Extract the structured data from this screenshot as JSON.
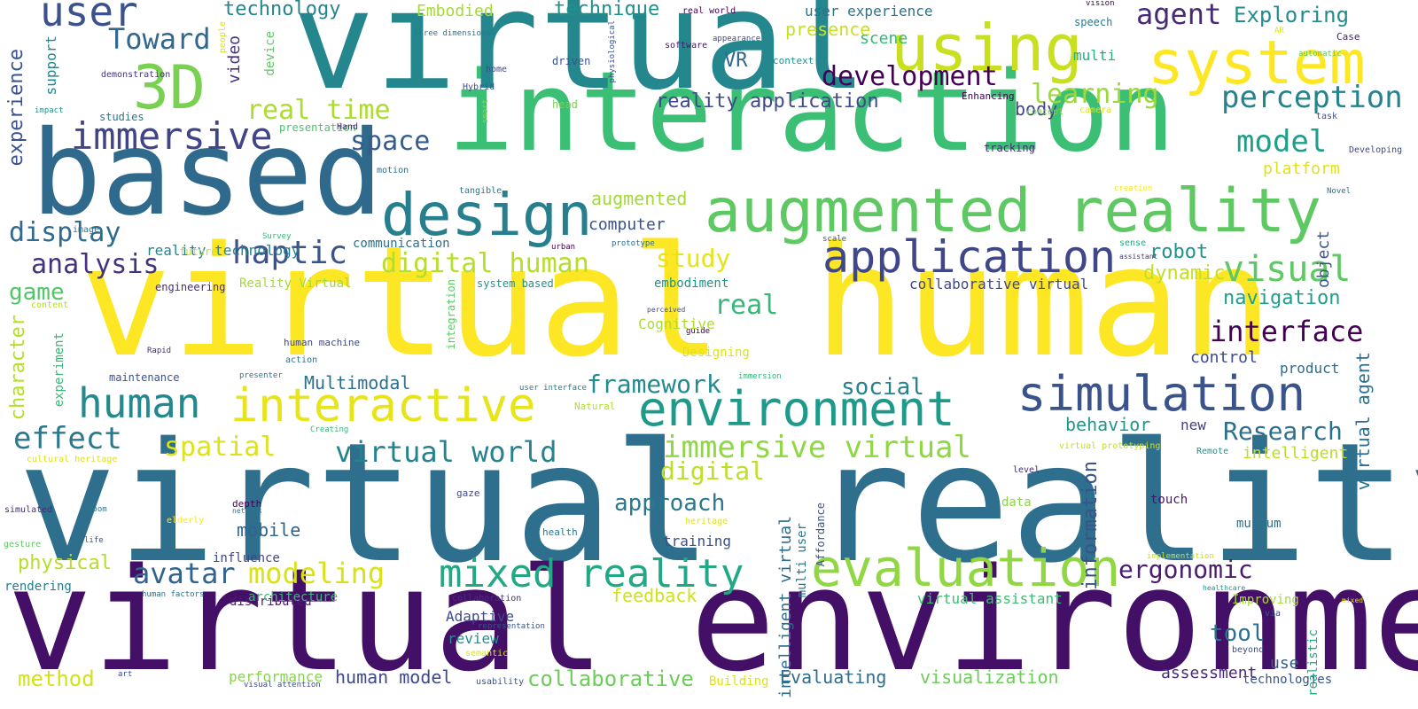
{
  "words": [
    {
      "text": "virtual reality",
      "color": "#2f6f8e",
      "vertical": false
    },
    {
      "text": "virtual environment",
      "color": "#440f66",
      "vertical": false
    },
    {
      "text": "virtual human",
      "color": "#fde725",
      "vertical": false
    },
    {
      "text": "interaction",
      "color": "#3bbf74",
      "vertical": false
    },
    {
      "text": "virtual",
      "color": "#24878e",
      "vertical": false
    },
    {
      "text": "based",
      "color": "#2f6a8c",
      "vertical": false
    },
    {
      "text": "augmented reality",
      "color": "#5ec962",
      "vertical": false
    },
    {
      "text": "using",
      "color": "#c8e020",
      "vertical": false
    },
    {
      "text": "system",
      "color": "#fde725",
      "vertical": false
    },
    {
      "text": "design",
      "color": "#277f8e",
      "vertical": false
    },
    {
      "text": "application",
      "color": "#3f4788",
      "vertical": false
    },
    {
      "text": "simulation",
      "color": "#3a538b",
      "vertical": false
    },
    {
      "text": "environment",
      "color": "#1f9a8a",
      "vertical": false
    },
    {
      "text": "interactive",
      "color": "#e7e419",
      "vertical": false
    },
    {
      "text": "evaluation",
      "color": "#90d743",
      "vertical": false
    },
    {
      "text": "mixed reality",
      "color": "#22a884",
      "vertical": false
    },
    {
      "text": "3D",
      "color": "#7ad151",
      "vertical": false
    },
    {
      "text": "user",
      "color": "#3b528b",
      "vertical": false
    },
    {
      "text": "immersive",
      "color": "#414487",
      "vertical": false
    },
    {
      "text": "human",
      "color": "#23898e",
      "vertical": false
    },
    {
      "text": "Toward",
      "color": "#31688e",
      "vertical": false
    },
    {
      "text": "haptic",
      "color": "#3b528b",
      "vertical": false
    },
    {
      "text": "interface",
      "color": "#440154",
      "vertical": false
    },
    {
      "text": "digital human",
      "color": "#b5de2b",
      "vertical": false
    },
    {
      "text": "immersive virtual",
      "color": "#8fd744",
      "vertical": false
    },
    {
      "text": "virtual world",
      "color": "#26828e",
      "vertical": false
    },
    {
      "text": "development",
      "color": "#440154",
      "vertical": false
    },
    {
      "text": "real time",
      "color": "#addc30",
      "vertical": false
    },
    {
      "text": "model",
      "color": "#1f9e89",
      "vertical": false
    },
    {
      "text": "perception",
      "color": "#26828e",
      "vertical": false
    },
    {
      "text": "visual",
      "color": "#5ec962",
      "vertical": false
    },
    {
      "text": "effect",
      "color": "#2a788e",
      "vertical": false
    },
    {
      "text": "space",
      "color": "#365c8d",
      "vertical": false
    },
    {
      "text": "display",
      "color": "#306a8e",
      "vertical": false
    },
    {
      "text": "analysis",
      "color": "#46337e",
      "vertical": false
    },
    {
      "text": "agent",
      "color": "#482878",
      "vertical": false
    },
    {
      "text": "Exploring",
      "color": "#228c8d",
      "vertical": false
    },
    {
      "text": "avatar",
      "color": "#32648e",
      "vertical": false
    },
    {
      "text": "modeling",
      "color": "#d8e219",
      "vertical": false
    },
    {
      "text": "learning",
      "color": "#9dd93b",
      "vertical": false
    },
    {
      "text": "approach",
      "color": "#2a788e",
      "vertical": false
    },
    {
      "text": "Research",
      "color": "#2d708e",
      "vertical": false
    },
    {
      "text": "framework",
      "color": "#228b8d",
      "vertical": false
    },
    {
      "text": "study",
      "color": "#e5e419",
      "vertical": false
    },
    {
      "text": "spatial",
      "color": "#dde318",
      "vertical": false
    },
    {
      "text": "digital",
      "color": "#bddf26",
      "vertical": false
    },
    {
      "text": "social",
      "color": "#26828e",
      "vertical": false
    },
    {
      "text": "real",
      "color": "#35b779",
      "vertical": false
    },
    {
      "text": "ergonomic",
      "color": "#481f70",
      "vertical": false
    },
    {
      "text": "tool",
      "color": "#2c728e",
      "vertical": false
    },
    {
      "text": "game",
      "color": "#52c569",
      "vertical": false
    },
    {
      "text": "technology",
      "color": "#25858e",
      "vertical": false
    },
    {
      "text": "technique",
      "color": "#21918c",
      "vertical": false
    },
    {
      "text": "reality application",
      "color": "#3e4a89",
      "vertical": false
    },
    {
      "text": "robot",
      "color": "#20928c",
      "vertical": false
    },
    {
      "text": "navigation",
      "color": "#1f9e89",
      "vertical": false
    },
    {
      "text": "control",
      "color": "#3e4989",
      "vertical": false
    },
    {
      "text": "behavior",
      "color": "#1f988b",
      "vertical": false
    },
    {
      "text": "dynamic",
      "color": "#c2df23",
      "vertical": false
    },
    {
      "text": "intelligent",
      "color": "#bade28",
      "vertical": false
    },
    {
      "text": "presence",
      "color": "#c8e020",
      "vertical": false
    },
    {
      "text": "body",
      "color": "#404688",
      "vertical": false
    },
    {
      "text": "computer",
      "color": "#3b518b",
      "vertical": false
    },
    {
      "text": "augmented",
      "color": "#a2da37",
      "vertical": false
    },
    {
      "text": "mobile",
      "color": "#33638d",
      "vertical": false
    },
    {
      "text": "physical",
      "color": "#b5de2b",
      "vertical": false
    },
    {
      "text": "method",
      "color": "#d2e21b",
      "vertical": false
    },
    {
      "text": "human model",
      "color": "#3e4989",
      "vertical": false
    },
    {
      "text": "collaborative",
      "color": "#6ccd5a",
      "vertical": false
    },
    {
      "text": "Evaluating",
      "color": "#2e6e8e",
      "vertical": false
    },
    {
      "text": "visualization",
      "color": "#6ccd5a",
      "vertical": false
    },
    {
      "text": "assessment",
      "color": "#472c7a",
      "vertical": false
    },
    {
      "text": "feedback",
      "color": "#d0e11c",
      "vertical": false
    },
    {
      "text": "Multimodal",
      "color": "#2d708e",
      "vertical": false
    },
    {
      "text": "Embodied",
      "color": "#a5db36",
      "vertical": false
    },
    {
      "text": "VR",
      "color": "#31688e",
      "vertical": false
    },
    {
      "text": "scene",
      "color": "#37b878",
      "vertical": false
    },
    {
      "text": "multi",
      "color": "#25ac82",
      "vertical": false
    },
    {
      "text": "platform",
      "color": "#dfe318",
      "vertical": false
    },
    {
      "text": "user experience",
      "color": "#2c728e",
      "vertical": false
    },
    {
      "text": "reality technology",
      "color": "#25848e",
      "vertical": false
    },
    {
      "text": "collaborative virtual",
      "color": "#3f4889",
      "vertical": false
    },
    {
      "text": "Cognitive",
      "color": "#addc30",
      "vertical": false
    },
    {
      "text": "embodiment",
      "color": "#1f958b",
      "vertical": false
    },
    {
      "text": "virtual assistant",
      "color": "#3fbc73",
      "vertical": false
    },
    {
      "text": "new",
      "color": "#424186",
      "vertical": false
    },
    {
      "text": "product",
      "color": "#306a8e",
      "vertical": false
    },
    {
      "text": "training",
      "color": "#3d4e8a",
      "vertical": false
    },
    {
      "text": "review",
      "color": "#21918c",
      "vertical": false
    },
    {
      "text": "performance",
      "color": "#86d549",
      "vertical": false
    },
    {
      "text": "Adaptive",
      "color": "#3e4a89",
      "vertical": false
    },
    {
      "text": "distributed",
      "color": "#481f70",
      "vertical": false
    },
    {
      "text": "architecture",
      "color": "#38b977",
      "vertical": false
    },
    {
      "text": "influence",
      "color": "#404688",
      "vertical": false
    },
    {
      "text": "rendering",
      "color": "#277e8e",
      "vertical": false
    },
    {
      "text": "touch",
      "color": "#481668",
      "vertical": false
    },
    {
      "text": "data",
      "color": "#8bd646",
      "vertical": false
    },
    {
      "text": "museum",
      "color": "#2c728e",
      "vertical": false
    },
    {
      "text": "use",
      "color": "#34608d",
      "vertical": false
    },
    {
      "text": "technologies",
      "color": "#3a538b",
      "vertical": false
    },
    {
      "text": "Building",
      "color": "#dde318",
      "vertical": false
    },
    {
      "text": "Improving",
      "color": "#a8db34",
      "vertical": false
    },
    {
      "text": "Designing",
      "color": "#dde318",
      "vertical": false
    },
    {
      "text": "maintenance",
      "color": "#3b528b",
      "vertical": false
    },
    {
      "text": "engineering",
      "color": "#472d7b",
      "vertical": false
    },
    {
      "text": "communication",
      "color": "#2d708e",
      "vertical": false
    },
    {
      "text": "Reality Virtual",
      "color": "#a2da37",
      "vertical": false
    },
    {
      "text": "system based",
      "color": "#21918c",
      "vertical": false
    },
    {
      "text": "future",
      "color": "#d0e11c",
      "vertical": false
    },
    {
      "text": "content",
      "color": "#b5de2b",
      "vertical": false
    },
    {
      "text": "support",
      "color": "#25848e",
      "vertical": true
    },
    {
      "text": "experience",
      "color": "#3b528b",
      "vertical": true
    },
    {
      "text": "video",
      "color": "#46327e",
      "vertical": true
    },
    {
      "text": "device",
      "color": "#5ec962",
      "vertical": true
    },
    {
      "text": "character",
      "color": "#b5de2b",
      "vertical": true
    },
    {
      "text": "experiment",
      "color": "#37b878",
      "vertical": true
    },
    {
      "text": "integration",
      "color": "#5ec962",
      "vertical": true
    },
    {
      "text": "information",
      "color": "#3a538b",
      "vertical": true
    },
    {
      "text": "intelligent virtual",
      "color": "#2e6d8e",
      "vertical": true
    },
    {
      "text": "multi user",
      "color": "#2a788e",
      "vertical": true
    },
    {
      "text": "Affordance",
      "color": "#3b528b",
      "vertical": true
    },
    {
      "text": "virtual agent",
      "color": "#2d708e",
      "vertical": true
    },
    {
      "text": "object",
      "color": "#3a538b",
      "vertical": true
    },
    {
      "text": "realistic",
      "color": "#22a884",
      "vertical": true
    },
    {
      "text": "smart",
      "color": "#8fd744",
      "vertical": true
    },
    {
      "text": "physiological",
      "color": "#3b528b",
      "vertical": true
    },
    {
      "text": "people",
      "color": "#dde318",
      "vertical": true
    },
    {
      "text": "image",
      "color": "#2c728e",
      "vertical": false
    },
    {
      "text": "demonstration",
      "color": "#46327e",
      "vertical": false
    },
    {
      "text": "impact",
      "color": "#21918c",
      "vertical": false
    },
    {
      "text": "studies",
      "color": "#2a788e",
      "vertical": false
    },
    {
      "text": "presentation",
      "color": "#4ac16d",
      "vertical": false
    },
    {
      "text": "Hand",
      "color": "#482173",
      "vertical": false
    },
    {
      "text": "three dimensional",
      "color": "#2a788e",
      "vertical": false
    },
    {
      "text": "home",
      "color": "#3e4a89",
      "vertical": false
    },
    {
      "text": "Hybrid",
      "color": "#3b528b",
      "vertical": false
    },
    {
      "text": "real world",
      "color": "#440154",
      "vertical": false
    },
    {
      "text": "software",
      "color": "#481668",
      "vertical": false
    },
    {
      "text": "driven",
      "color": "#3b528b",
      "vertical": false
    },
    {
      "text": "head",
      "color": "#7ad151",
      "vertical": false
    },
    {
      "text": "motion",
      "color": "#2d708e",
      "vertical": false
    },
    {
      "text": "appearance",
      "color": "#3e4a89",
      "vertical": false
    },
    {
      "text": "context",
      "color": "#21918c",
      "vertical": false
    },
    {
      "text": "Enhancing",
      "color": "#440154",
      "vertical": false
    },
    {
      "text": "concept",
      "color": "#7ad151",
      "vertical": false
    },
    {
      "text": "camera",
      "color": "#dde318",
      "vertical": false
    },
    {
      "text": "tracking",
      "color": "#482878",
      "vertical": false
    },
    {
      "text": "vision",
      "color": "#440154",
      "vertical": false
    },
    {
      "text": "speech",
      "color": "#2a788e",
      "vertical": false
    },
    {
      "text": "AR",
      "color": "#d8e219",
      "vertical": false
    },
    {
      "text": "automatic",
      "color": "#5ec962",
      "vertical": false
    },
    {
      "text": "Case",
      "color": "#482173",
      "vertical": false
    },
    {
      "text": "task",
      "color": "#3b528b",
      "vertical": false
    },
    {
      "text": "Developing",
      "color": "#3e4a89",
      "vertical": false
    },
    {
      "text": "Novel",
      "color": "#2a788e",
      "vertical": false
    },
    {
      "text": "creation",
      "color": "#fde725",
      "vertical": false
    },
    {
      "text": "tangible",
      "color": "#2a788e",
      "vertical": false
    },
    {
      "text": "Survey",
      "color": "#35b779",
      "vertical": false
    },
    {
      "text": "urban",
      "color": "#440154",
      "vertical": false
    },
    {
      "text": "prototype",
      "color": "#2d708e",
      "vertical": false
    },
    {
      "text": "scale",
      "color": "#3b528b",
      "vertical": false
    },
    {
      "text": "sense",
      "color": "#22a884",
      "vertical": false
    },
    {
      "text": "assistant",
      "color": "#46327e",
      "vertical": false
    },
    {
      "text": "perceived",
      "color": "#3b528b",
      "vertical": false
    },
    {
      "text": "guide",
      "color": "#440154",
      "vertical": false
    },
    {
      "text": "human machine",
      "color": "#3e4a89",
      "vertical": false
    },
    {
      "text": "Rapid",
      "color": "#472d7b",
      "vertical": false
    },
    {
      "text": "action",
      "color": "#2c728e",
      "vertical": false
    },
    {
      "text": "presenter",
      "color": "#2c728e",
      "vertical": false
    },
    {
      "text": "immersion",
      "color": "#35b779",
      "vertical": false
    },
    {
      "text": "user interface",
      "color": "#2a788e",
      "vertical": false
    },
    {
      "text": "Natural",
      "color": "#addc30",
      "vertical": false
    },
    {
      "text": "Creating",
      "color": "#37b878",
      "vertical": false
    },
    {
      "text": "cultural heritage",
      "color": "#dde318",
      "vertical": false
    },
    {
      "text": "virtual prototyping",
      "color": "#c8e020",
      "vertical": false
    },
    {
      "text": "Remote",
      "color": "#21918c",
      "vertical": false
    },
    {
      "text": "level",
      "color": "#482878",
      "vertical": false
    },
    {
      "text": "gaze",
      "color": "#3e4a89",
      "vertical": false
    },
    {
      "text": "simulated",
      "color": "#482878",
      "vertical": false
    },
    {
      "text": "room",
      "color": "#2a788e",
      "vertical": false
    },
    {
      "text": "depth",
      "color": "#440154",
      "vertical": false
    },
    {
      "text": "network",
      "color": "#2d708e",
      "vertical": false
    },
    {
      "text": "elderly",
      "color": "#fde725",
      "vertical": false
    },
    {
      "text": "gesture",
      "color": "#5ec962",
      "vertical": false
    },
    {
      "text": "life",
      "color": "#3b528b",
      "vertical": false
    },
    {
      "text": "health",
      "color": "#2a788e",
      "vertical": false
    },
    {
      "text": "heritage",
      "color": "#dde318",
      "vertical": false
    },
    {
      "text": "implementation",
      "color": "#c8e020",
      "vertical": false
    },
    {
      "text": "healthcare",
      "color": "#21918c",
      "vertical": false
    },
    {
      "text": "mixed",
      "color": "#dde318",
      "vertical": false
    },
    {
      "text": "via",
      "color": "#3b528b",
      "vertical": false
    },
    {
      "text": "human factors",
      "color": "#2c728e",
      "vertical": false
    },
    {
      "text": "collaboration",
      "color": "#46327e",
      "vertical": false
    },
    {
      "text": "representation",
      "color": "#3b528b",
      "vertical": false
    },
    {
      "text": "semantic",
      "color": "#dde318",
      "vertical": false
    },
    {
      "text": "usability",
      "color": "#3b528b",
      "vertical": false
    },
    {
      "text": "art",
      "color": "#3e4a89",
      "vertical": false
    },
    {
      "text": "visual attention",
      "color": "#3e4a89",
      "vertical": false
    },
    {
      "text": "beyond",
      "color": "#3e4a89",
      "vertical": false
    },
    {
      "text": "perspective",
      "color": "#2c728e",
      "vertical": false
    }
  ]
}
